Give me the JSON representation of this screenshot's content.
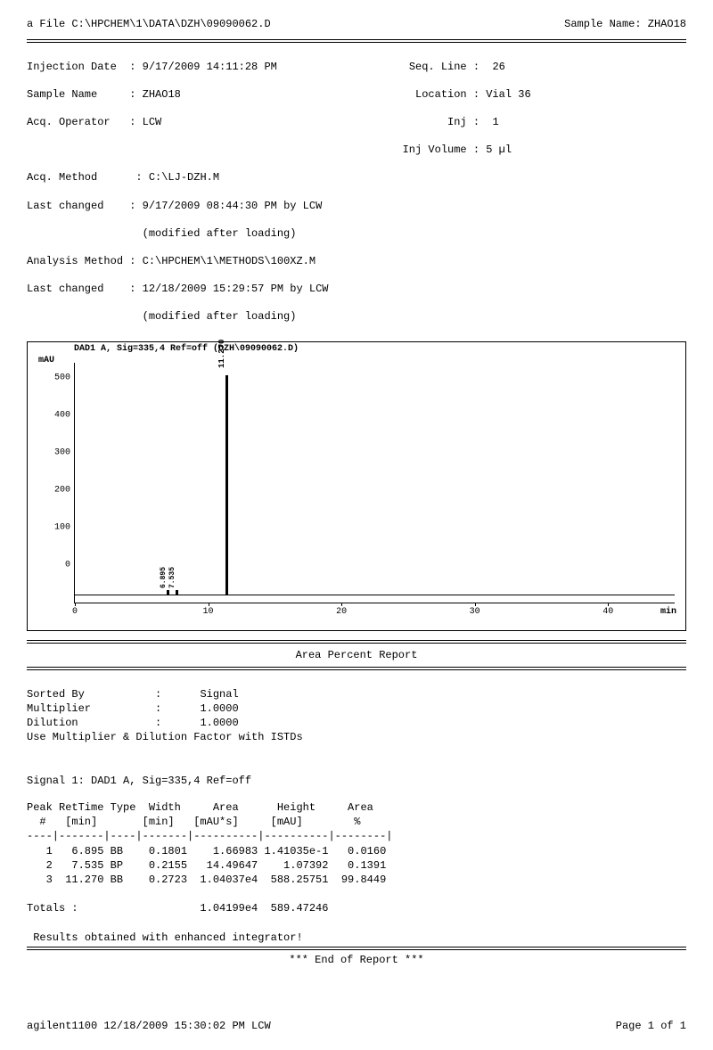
{
  "header": {
    "file_label": "a File",
    "file_path": "C:\\HPCHEM\\1\\DATA\\DZH\\09090062.D",
    "sample_name_label": "Sample Name:",
    "sample_name": "ZHAO18"
  },
  "meta": {
    "injection_date_label": "Injection Date",
    "injection_date": "9/17/2009 14:11:28 PM",
    "seq_line_label": "Seq. Line",
    "seq_line": "26",
    "sample_name_label": "Sample Name",
    "sample_name": "ZHAO18",
    "location_label": "Location",
    "location": "Vial 36",
    "acq_operator_label": "Acq. Operator",
    "acq_operator": "LCW",
    "inj_label": "Inj",
    "inj": "1",
    "inj_volume_label": "Inj Volume",
    "inj_volume": "5 µl",
    "acq_method_label": "Acq. Method",
    "acq_method": "C:\\LJ-DZH.M",
    "last_changed1_label": "Last changed",
    "last_changed1": "9/17/2009 08:44:30 PM by LCW",
    "last_changed1_note": "(modified after loading)",
    "analysis_method_label": "Analysis Method",
    "analysis_method": "C:\\HPCHEM\\1\\METHODS\\100XZ.M",
    "last_changed2_label": "Last changed",
    "last_changed2": "12/18/2009 15:29:57 PM by LCW",
    "last_changed2_note": "(modified after loading)"
  },
  "chart": {
    "signal_label": "DAD1 A, Sig=335,4 Ref=off (DZH\\09090062.D)",
    "y_unit": "mAU",
    "x_unit": "min",
    "x_min": 0,
    "x_max": 45,
    "y_min": 0,
    "y_max": 600,
    "y_ticks": [
      0,
      100,
      200,
      300,
      400,
      500
    ],
    "x_ticks": [
      0,
      10,
      20,
      30,
      40
    ],
    "peaks": [
      {
        "rt": 6.895,
        "height_mau": 0.141,
        "label": "6.895"
      },
      {
        "rt": 7.535,
        "height_mau": 1.074,
        "label": "7.535"
      },
      {
        "rt": 11.27,
        "height_mau": 588.258,
        "label": "11.270"
      }
    ],
    "colors": {
      "line": "#000000",
      "background": "#ffffff"
    }
  },
  "report": {
    "title": "Area Percent Report",
    "sorted_by_label": "Sorted By",
    "sorted_by": "Signal",
    "multiplier_label": "Multiplier",
    "multiplier": "1.0000",
    "dilution_label": "Dilution",
    "dilution": "1.0000",
    "istd_note": "Use Multiplier & Dilution Factor with ISTDs",
    "signal_header": "Signal 1: DAD1 A, Sig=335,4 Ref=off",
    "columns": [
      "Peak\n  #",
      "RetTime\n [min]",
      "Type",
      "Width\n[min]",
      "Area\n[mAU*s]",
      "Height\n[mAU]",
      "Area\n  %"
    ],
    "rows": [
      [
        "1",
        "6.895",
        "BB",
        "0.1801",
        "1.66983",
        "1.41035e-1",
        "0.0160"
      ],
      [
        "2",
        "7.535",
        "BP",
        "0.2155",
        "14.49647",
        "1.07392",
        "0.1391"
      ],
      [
        "3",
        "11.270",
        "BB",
        "0.2723",
        "1.04037e4",
        "588.25751",
        "99.8449"
      ]
    ],
    "totals_label": "Totals :",
    "totals_area": "1.04199e4",
    "totals_height": "589.47246",
    "results_note": "Results obtained with enhanced integrator!",
    "end": "*** End of Report ***"
  },
  "footer": {
    "left": "agilent1100 12/18/2009 15:30:02 PM LCW",
    "right": "Page 1 of 1"
  }
}
